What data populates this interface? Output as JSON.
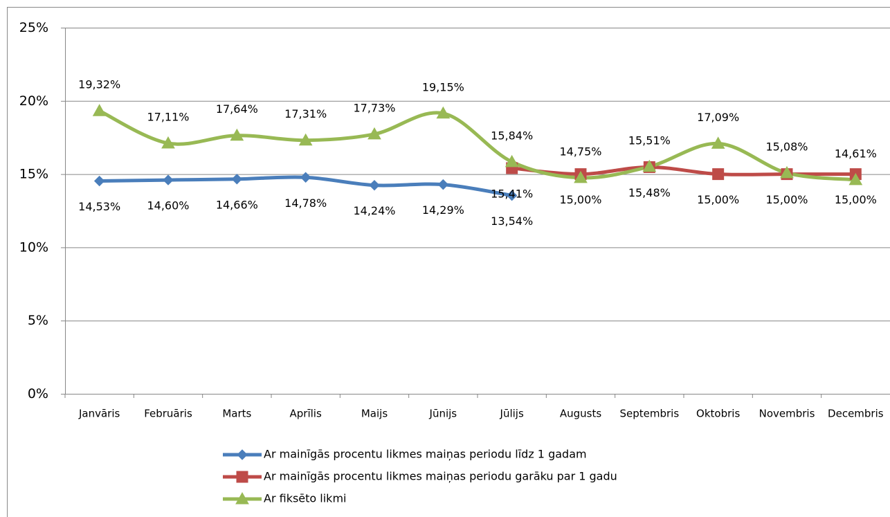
{
  "chart_data": {
    "type": "line",
    "categories": [
      "Janvāris",
      "Februāris",
      "Marts",
      "Aprīlis",
      "Maijs",
      "Jūnijs",
      "Jūlijs",
      "Augusts",
      "Septembris",
      "Oktobris",
      "Novembris",
      "Decembris"
    ],
    "ylim": [
      0,
      25
    ],
    "yticks": [
      {
        "value": 0,
        "label": "0%"
      },
      {
        "value": 5,
        "label": "5%"
      },
      {
        "value": 10,
        "label": "10%"
      },
      {
        "value": 15,
        "label": "15%"
      },
      {
        "value": 20,
        "label": "20%"
      },
      {
        "value": 25,
        "label": "25%"
      }
    ],
    "grid": true,
    "legend": "bottom",
    "series": [
      {
        "name": "Ar mainīgās procentu likmes  maiņas periodu līdz 1 gadam",
        "color": "#4a7ebb",
        "marker": "diamond",
        "label_side": "below",
        "values": [
          14.53,
          14.6,
          14.66,
          14.78,
          14.24,
          14.29,
          13.54,
          null,
          null,
          null,
          null,
          null
        ],
        "value_labels": [
          "14,53%",
          "14,60%",
          "14,66%",
          "14,78%",
          "14,24%",
          "14,29%",
          "13,54%",
          null,
          null,
          null,
          null,
          null
        ]
      },
      {
        "name": "Ar mainīgās procentu likmes maiņas periodu garāku par 1 gadu",
        "color": "#be4b48",
        "marker": "square",
        "label_side": "below",
        "values": [
          null,
          null,
          null,
          null,
          null,
          null,
          15.41,
          15.0,
          15.48,
          15.0,
          15.0,
          15.0
        ],
        "value_labels": [
          null,
          null,
          null,
          null,
          null,
          null,
          "15,41%",
          "15,00%",
          "15,48%",
          "15,00%",
          "15,00%",
          "15,00%"
        ]
      },
      {
        "name": "Ar fiksēto likmi",
        "color": "#98b954",
        "marker": "triangle",
        "label_side": "above",
        "values": [
          19.32,
          17.11,
          17.64,
          17.31,
          17.73,
          19.15,
          15.84,
          14.75,
          15.51,
          17.09,
          15.08,
          14.61
        ],
        "value_labels": [
          "19,32%",
          "17,11%",
          "17,64%",
          "17,31%",
          "17,73%",
          "19,15%",
          "15,84%",
          "14,75%",
          "15,51%",
          "17,09%",
          "15,08%",
          "14,61%"
        ]
      }
    ]
  }
}
